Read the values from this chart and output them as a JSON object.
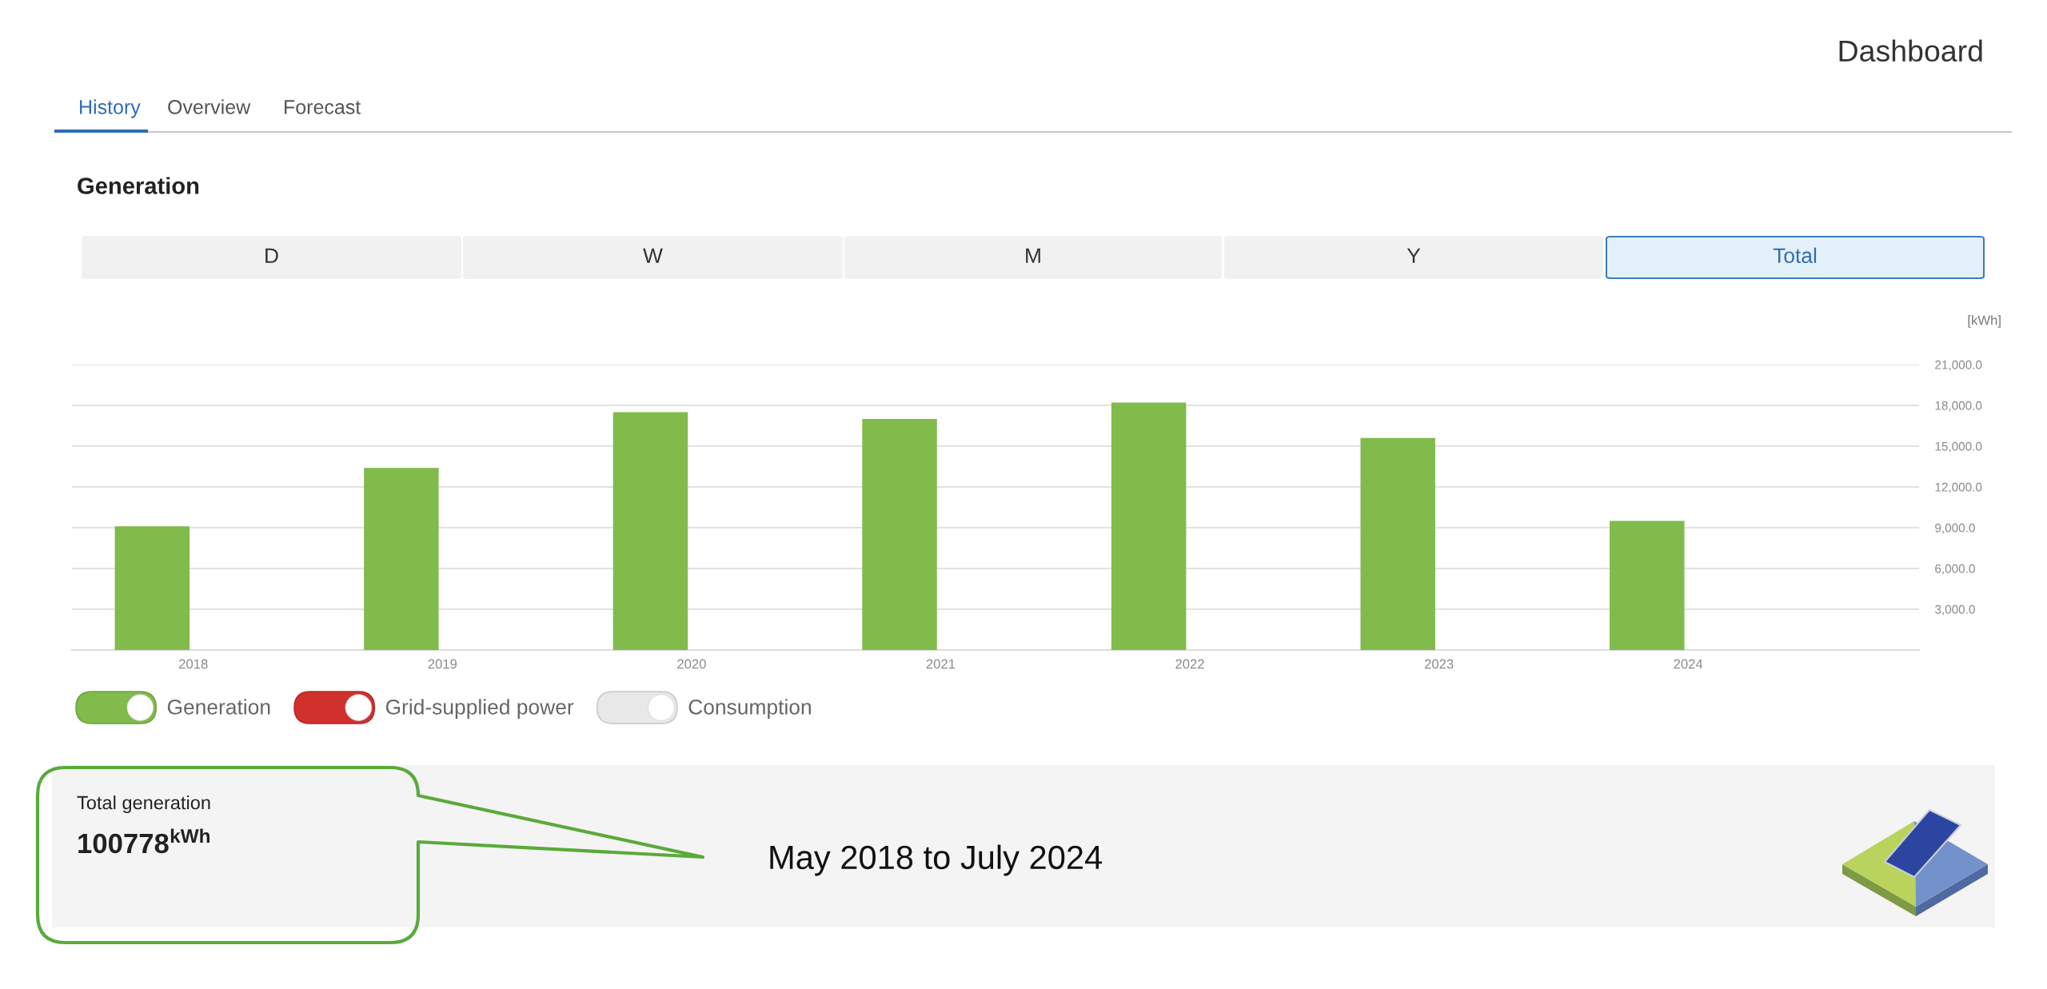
{
  "chart_data": {
    "type": "bar",
    "title": "Generation",
    "ylabel": "[kWh]",
    "categories": [
      "2018",
      "2019",
      "2020",
      "2021",
      "2022",
      "2023",
      "2024"
    ],
    "series": [
      {
        "name": "Generation",
        "color": "#80bb4b",
        "values": [
          9100,
          13400,
          17500,
          17000,
          18200,
          15600,
          9500
        ]
      },
      {
        "name": "Grid-supplied power",
        "color": "#d0312d",
        "values": [
          null,
          null,
          null,
          null,
          null,
          null,
          null
        ]
      },
      {
        "name": "Consumption",
        "color": "#e8e8e8",
        "values": [
          null,
          null,
          null,
          null,
          null,
          null,
          null
        ]
      }
    ],
    "ylim": [
      0,
      21000
    ],
    "yticks": [
      {
        "value": 3000,
        "label": "3,000.0"
      },
      {
        "value": 6000,
        "label": "6,000.0"
      },
      {
        "value": 9000,
        "label": "9,000.0"
      },
      {
        "value": 12000,
        "label": "12,000.0"
      },
      {
        "value": 15000,
        "label": "15,000.0"
      },
      {
        "value": 18000,
        "label": "18,000.0"
      },
      {
        "value": 21000,
        "label": "21,000.0"
      }
    ],
    "grid": "y",
    "legend": "bottom left",
    "annotations": [
      "Dashboard",
      "History",
      "Overview",
      "Forecast",
      "D",
      "W",
      "M",
      "Y",
      "Total",
      "Total generation",
      "100778$^{kWh}$",
      "May 2018 to July 2024"
    ]
  }
}
